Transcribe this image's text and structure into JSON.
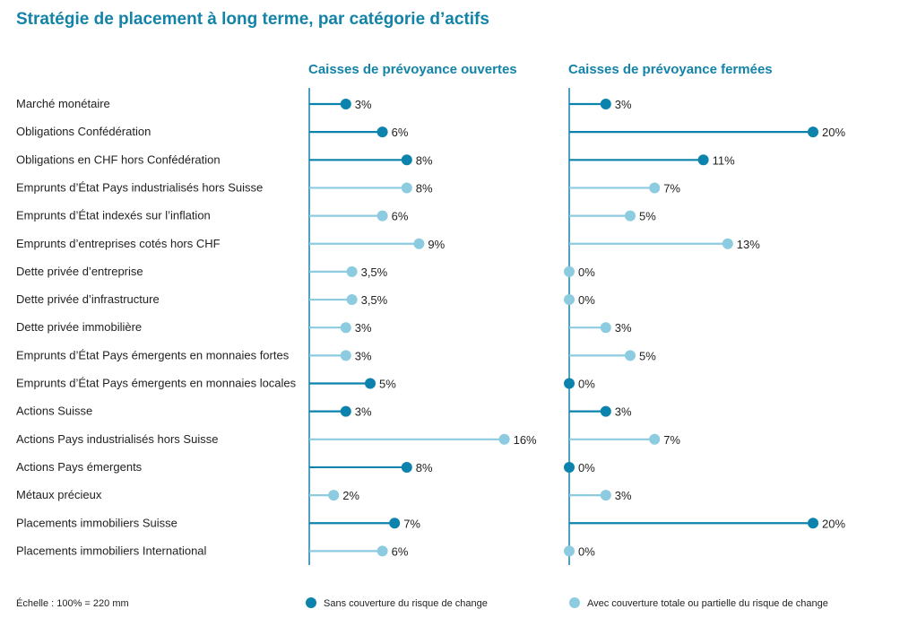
{
  "chart_data": {
    "type": "lollipop",
    "title": "Stratégie de placement à long terme, par catégorie d’actifs",
    "scale_note": "Échelle : 100% = 220 mm",
    "categories": [
      "Marché monétaire",
      "Obligations Confédération",
      "Obligations en CHF hors Confédération",
      "Emprunts d’État Pays industrialisés hors Suisse",
      "Emprunts d’État indexés sur l’inflation",
      "Emprunts d’entreprises cotés hors CHF",
      "Dette privée d’entreprise",
      "Dette privée d’infrastructure",
      "Dette privée immobilière",
      "Emprunts d’État Pays émergents en monnaies fortes",
      "Emprunts d’État Pays émergents en monnaies locales",
      "Actions Suisse",
      "Actions Pays industrialisés hors Suisse",
      "Actions Pays émergents",
      "Métaux précieux",
      "Placements immobiliers Suisse",
      "Placements immobiliers International"
    ],
    "hedging": [
      "unhedged",
      "unhedged",
      "unhedged",
      "hedged",
      "hedged",
      "hedged",
      "hedged",
      "hedged",
      "hedged",
      "hedged",
      "unhedged",
      "unhedged",
      "hedged",
      "unhedged",
      "hedged",
      "unhedged",
      "hedged"
    ],
    "series": [
      {
        "name": "Caisses de prévoyance ouvertes",
        "values": [
          3,
          6,
          8,
          8,
          6,
          9,
          3.5,
          3.5,
          3,
          3,
          5,
          3,
          16,
          8,
          2,
          7,
          6
        ],
        "labels": [
          "3%",
          "6%",
          "8%",
          "8%",
          "6%",
          "9%",
          "3,5%",
          "3,5%",
          "3%",
          "3%",
          "5%",
          "3%",
          "16%",
          "8%",
          "2%",
          "7%",
          "6%"
        ]
      },
      {
        "name": "Caisses de prévoyance fermées",
        "values": [
          3,
          20,
          11,
          7,
          5,
          13,
          0,
          0,
          3,
          5,
          0,
          3,
          7,
          0,
          3,
          20,
          0
        ],
        "labels": [
          "3%",
          "20%",
          "11%",
          "7%",
          "5%",
          "13%",
          "0%",
          "0%",
          "3%",
          "5%",
          "0%",
          "3%",
          "7%",
          "0%",
          "3%",
          "20%",
          "0%"
        ]
      }
    ],
    "legend": [
      {
        "key": "unhedged",
        "label": "Sans couverture du risque de change",
        "color": "#0b83ad"
      },
      {
        "key": "hedged",
        "label": "Avec couverture totale ou partielle du risque de change",
        "color": "#8ccbe0"
      }
    ],
    "legend_position": "bottom",
    "grid": false
  }
}
